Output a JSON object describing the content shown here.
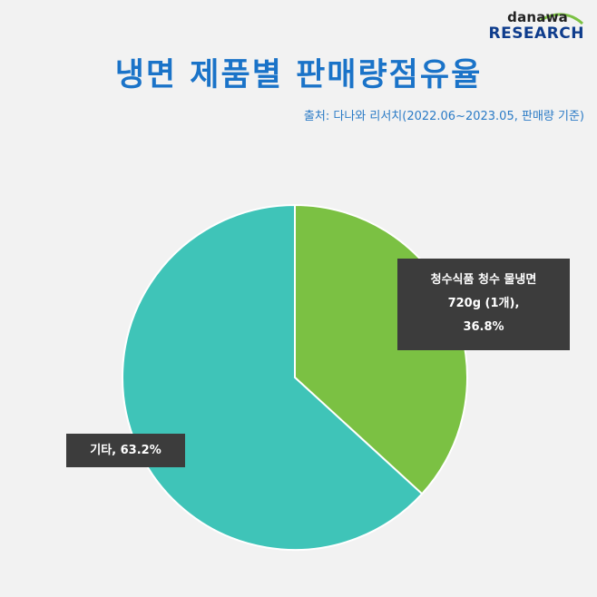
{
  "logo": {
    "line1": "danawa",
    "line2": "RESEARCH"
  },
  "title": "냉면 제품별 판매량점유율",
  "source": "출처: 다나와 리서치(2022.06~2023.05,  판매량 기준)",
  "colors": {
    "green": "#7bc143",
    "teal": "#3fc4b8",
    "label_bg": "#3c3c3c",
    "title": "#1a73c8"
  },
  "chart_data": {
    "type": "pie",
    "slices": [
      {
        "label_lines": [
          "청수식품  청수  물냉면",
          "720g  (1개),",
          "36.8%"
        ],
        "value": 36.8,
        "color": "#7bc143"
      },
      {
        "label_lines": [
          "기타,  63.2%"
        ],
        "value": 63.2,
        "color": "#3fc4b8"
      }
    ]
  }
}
